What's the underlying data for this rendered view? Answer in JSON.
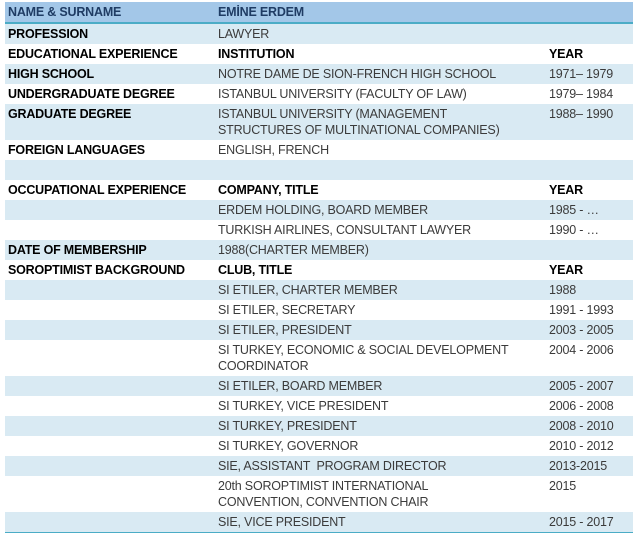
{
  "colors": {
    "header_fill": "#A3C7E8",
    "band_fill": "#D9EAF3",
    "accent_border": "#4BACC6",
    "header_text": "#1F3C64",
    "label_text": "#000000",
    "value_text": "#3B3B3B"
  },
  "table": {
    "columns": [
      "label",
      "value",
      "year"
    ],
    "rows": [
      {
        "label": "NAME & SURNAME",
        "value": "EMİNE ERDEM",
        "year": "",
        "band": "header",
        "value_bold": true
      },
      {
        "label": "PROFESSION",
        "value": "LAWYER",
        "year": "",
        "band": "light",
        "value_bold": false
      },
      {
        "label": "EDUCATIONAL EXPERIENCE",
        "value": "INSTITUTION",
        "year": "YEAR",
        "band": "white",
        "value_bold": true
      },
      {
        "label": "HIGH SCHOOL",
        "value": "NOTRE DAME DE SION-FRENCH HIGH SCHOOL",
        "year": "1971– 1979",
        "band": "light",
        "value_bold": false
      },
      {
        "label": "UNDERGRADUATE DEGREE",
        "value": "ISTANBUL UNIVERSITY (FACULTY OF LAW)",
        "year": "1979– 1984",
        "band": "white",
        "value_bold": false
      },
      {
        "label": "GRADUATE DEGREE",
        "value": "ISTANBUL UNIVERSITY (MANAGEMENT\nSTRUCTURES OF MULTINATIONAL COMPANIES)",
        "year": "1988– 1990",
        "band": "light",
        "value_bold": false
      },
      {
        "label": "FOREIGN LANGUAGES",
        "value": "ENGLISH, FRENCH",
        "year": "",
        "band": "white",
        "value_bold": false
      },
      {
        "label": "",
        "value": "",
        "year": "",
        "band": "light",
        "value_bold": false
      },
      {
        "label": "OCCUPATIONAL EXPERIENCE",
        "value": "COMPANY, TITLE",
        "year": "YEAR",
        "band": "white",
        "value_bold": true
      },
      {
        "label": "",
        "value": "ERDEM HOLDING, BOARD MEMBER",
        "year": "1985 - …",
        "band": "light",
        "value_bold": false
      },
      {
        "label": "",
        "value": "TURKISH AIRLINES, CONSULTANT LAWYER",
        "year": "1990 - …",
        "band": "white",
        "value_bold": false
      },
      {
        "label": "DATE OF MEMBERSHIP",
        "value": "1988(CHARTER MEMBER)",
        "year": "",
        "band": "light",
        "value_bold": false
      },
      {
        "label": "SOROPTIMIST BACKGROUND",
        "value": "CLUB, TITLE",
        "year": "YEAR",
        "band": "white",
        "value_bold": true
      },
      {
        "label": "",
        "value": "SI ETILER, CHARTER MEMBER",
        "year": "1988",
        "band": "light",
        "value_bold": false
      },
      {
        "label": "",
        "value": "SI ETILER, SECRETARY",
        "year": "1991 - 1993",
        "band": "white",
        "value_bold": false
      },
      {
        "label": "",
        "value": "SI ETILER, PRESIDENT",
        "year": "2003 - 2005",
        "band": "light",
        "value_bold": false
      },
      {
        "label": "",
        "value": "SI TURKEY, ECONOMIC & SOCIAL DEVELOPMENT\nCOORDINATOR",
        "year": "2004 - 2006",
        "band": "white",
        "value_bold": false
      },
      {
        "label": "",
        "value": "SI ETILER, BOARD MEMBER",
        "year": "2005 - 2007",
        "band": "light",
        "value_bold": false
      },
      {
        "label": "",
        "value": "SI TURKEY, VICE PRESIDENT",
        "year": "2006 - 2008",
        "band": "white",
        "value_bold": false
      },
      {
        "label": "",
        "value": "SI TURKEY, PRESIDENT",
        "year": "2008 - 2010",
        "band": "light",
        "value_bold": false
      },
      {
        "label": "",
        "value": "SI TURKEY, GOVERNOR",
        "year": "2010 - 2012",
        "band": "white",
        "value_bold": false
      },
      {
        "label": "",
        "value": "SIE, ASSISTANT  PROGRAM DIRECTOR",
        "year": "2013-2015",
        "band": "light",
        "value_bold": false
      },
      {
        "label": "",
        "value": "20th SOROPTIMIST INTERNATIONAL\nCONVENTION, CONVENTION CHAIR",
        "year": "2015",
        "band": "white",
        "value_bold": false
      },
      {
        "label": "",
        "value": "SIE, VICE PRESIDENT",
        "year": "2015 - 2017",
        "band": "light",
        "value_bold": false
      }
    ]
  }
}
